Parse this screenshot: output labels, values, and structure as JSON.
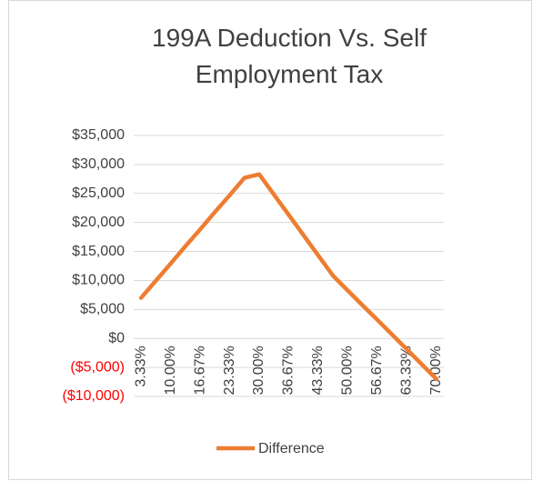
{
  "chart_data": {
    "type": "line",
    "title": "199A Deduction Vs. Self Employment Tax",
    "categories": [
      "3.33%",
      null,
      "10.00%",
      null,
      "16.67%",
      null,
      "23.33%",
      null,
      "30.00%",
      null,
      "36.67%",
      null,
      "43.33%",
      null,
      "50.00%",
      null,
      "56.67%",
      null,
      "63.33%",
      null,
      "70.00%"
    ],
    "series": [
      {
        "name": "Difference",
        "color": "#ed7d31",
        "values": [
          7000,
          9950,
          12900,
          15900,
          18800,
          21800,
          24700,
          27700,
          28300,
          24800,
          21300,
          17800,
          14300,
          10800,
          8250,
          5700,
          3200,
          650,
          -1900,
          -4450,
          -7000
        ]
      }
    ],
    "ylim": [
      -10000,
      35000
    ],
    "yticks": [
      {
        "value": -10000,
        "label": "($10,000)"
      },
      {
        "value": -5000,
        "label": "($5,000)"
      },
      {
        "value": 0,
        "label": "$0"
      },
      {
        "value": 5000,
        "label": "$5,000"
      },
      {
        "value": 10000,
        "label": "$10,000"
      },
      {
        "value": 15000,
        "label": "$15,000"
      },
      {
        "value": 20000,
        "label": "$20,000"
      },
      {
        "value": 25000,
        "label": "$25,000"
      },
      {
        "value": 30000,
        "label": "$30,000"
      },
      {
        "value": 35000,
        "label": "$35,000"
      }
    ],
    "grid": true,
    "legend": "bottom",
    "negative_tick_color": "#ff0000"
  }
}
